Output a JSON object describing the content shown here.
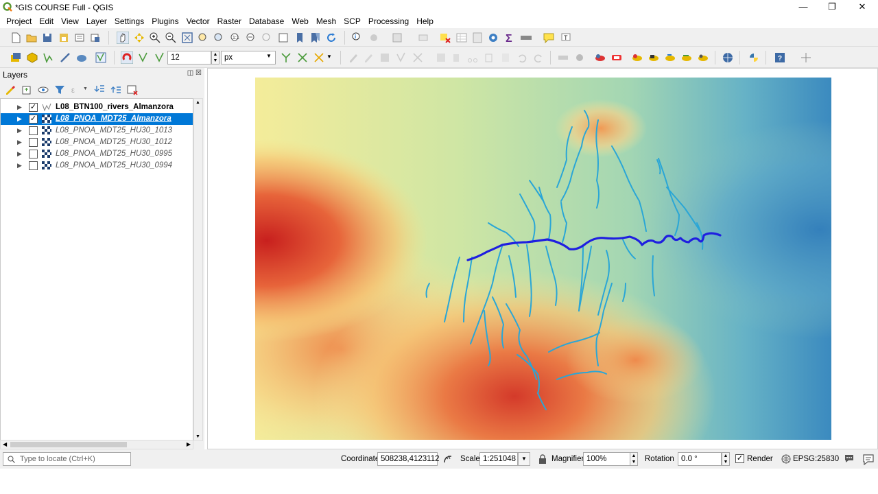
{
  "window": {
    "title": "*GIS COURSE Full - QGIS",
    "minimize": "—",
    "restore": "❐",
    "close": "✕"
  },
  "menu": [
    "Project",
    "Edit",
    "View",
    "Layer",
    "Settings",
    "Plugins",
    "Vector",
    "Raster",
    "Database",
    "Web",
    "Mesh",
    "SCP",
    "Processing",
    "Help"
  ],
  "digitize_toolbar": {
    "size_value": "12",
    "unit_value": "px"
  },
  "layers_panel": {
    "title": "Layers",
    "float_btn": "◫",
    "close_btn": "☒",
    "layers": [
      {
        "name": "L08_BTN100_rivers_Almanzora",
        "checked": "✓",
        "kind": "vector"
      },
      {
        "name": "L08_PNOA_MDT25_Almanzora",
        "checked": "✓",
        "kind": "raster"
      },
      {
        "name": "L08_PNOA_MDT25_HU30_1013",
        "checked": "",
        "kind": "raster"
      },
      {
        "name": "L08_PNOA_MDT25_HU30_1012",
        "checked": "",
        "kind": "raster"
      },
      {
        "name": "L08_PNOA_MDT25_HU30_0995",
        "checked": "",
        "kind": "raster"
      },
      {
        "name": "L08_PNOA_MDT25_HU30_0994",
        "checked": "",
        "kind": "raster"
      }
    ]
  },
  "statusbar": {
    "locate_placeholder": "Type to locate (Ctrl+K)",
    "coordinate_label": "Coordinate",
    "coordinate_value": "508238,4123112",
    "scale_label": "Scale",
    "scale_value": "1:251048",
    "magnifier_label": "Magnifier",
    "magnifier_value": "100%",
    "rotation_label": "Rotation",
    "rotation_value": "0.0 °",
    "render_label": "Render",
    "render_checked": "✓",
    "crs_label": "EPSG:25830"
  },
  "map": {
    "main_river_color": "#1f1fe0",
    "tributary_color": "#2aa6d6"
  }
}
